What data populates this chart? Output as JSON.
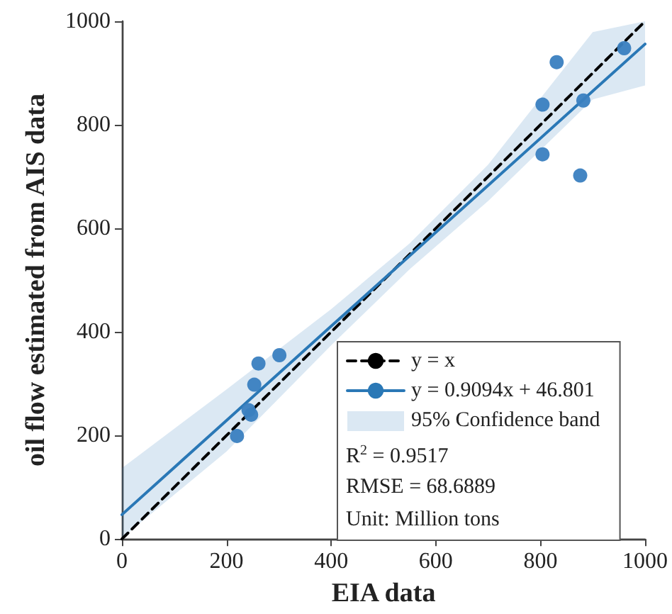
{
  "chart_data": {
    "type": "scatter",
    "xlabel": "EIA data",
    "ylabel": "oil flow estimated from AIS data",
    "xlim": [
      0,
      1000
    ],
    "ylim": [
      0,
      1000
    ],
    "xticks": [
      0,
      200,
      400,
      600,
      800,
      1000
    ],
    "yticks": [
      0,
      200,
      400,
      600,
      800,
      1000
    ],
    "grid": false,
    "legend": "bottom right",
    "series": [
      {
        "type": "line",
        "name": "y = x",
        "color": "#000000",
        "line_style": "dashed",
        "marker": "none",
        "x": [
          0,
          1000
        ],
        "values": [
          0,
          1000
        ]
      },
      {
        "type": "line",
        "name": "y = 0.9094x + 46.801",
        "color": "#2a78b6",
        "line_style": "solid",
        "marker": "none",
        "x": [
          0,
          200,
          400,
          550,
          700,
          900,
          1000
        ],
        "values": [
          47,
          229,
          411,
          547,
          683,
          865,
          956
        ],
        "lower": [
          2,
          169,
          374,
          521,
          653,
          849,
          876
        ],
        "upper": [
          137,
          289,
          444,
          571,
          723,
          979,
          1000
        ]
      },
      {
        "color": "#3a80c0",
        "marker": "circle",
        "x": [
          220,
          247,
          242,
          253,
          261,
          301,
          804,
          831,
          882,
          960,
          804,
          876
        ],
        "values": [
          199,
          240,
          249,
          298,
          339,
          355,
          839,
          921,
          847,
          948,
          743,
          702
        ]
      }
    ],
    "annotations": [
      "95% Confidence band",
      "R$^{2}$ = 0.9517",
      "RMSE = 68.6889",
      "Unit: Million tons"
    ]
  }
}
